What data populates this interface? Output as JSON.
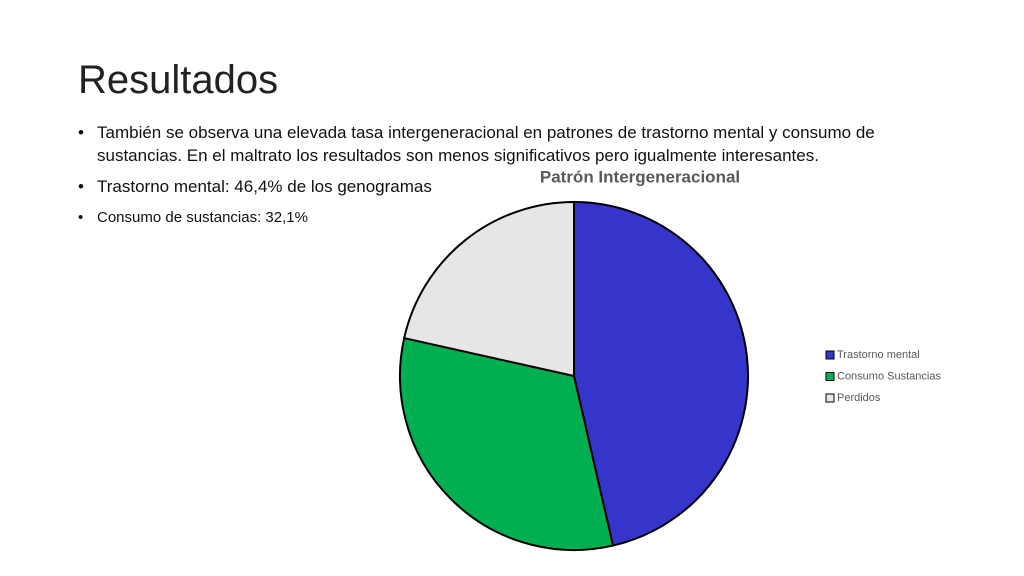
{
  "slide": {
    "title": "Resultados",
    "bullets": [
      "También se observa una elevada tasa intergeneracional en patrones de trastorno mental y consumo de sustancias. En el maltrato los resultados son menos significativos pero igualmente interesantes.",
      "Trastorno mental: 46,4% de los genogramas",
      "Consumo de sustancias: 32,1%"
    ]
  },
  "chart_data": {
    "type": "pie",
    "title": "Patrón Intergeneracional",
    "categories": [
      "Trastorno mental",
      "Consumo Sustancias",
      "Perdidos"
    ],
    "values": [
      46.4,
      32.1,
      21.5
    ],
    "colors": [
      "#3535cc",
      "#00b050",
      "#e6e6e6"
    ],
    "legend": "right"
  }
}
